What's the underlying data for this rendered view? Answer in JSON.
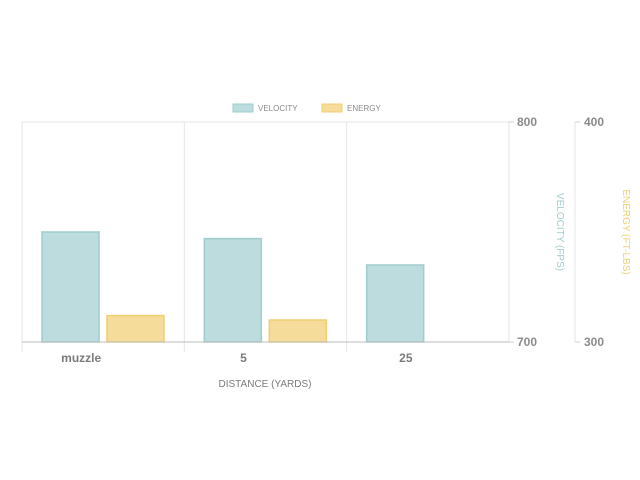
{
  "chart_data": {
    "type": "bar",
    "categories": [
      "muzzle",
      "5",
      "25"
    ],
    "series": [
      {
        "name": "VELOCITY",
        "values": [
          750,
          747,
          735
        ],
        "axis": "left",
        "color": "#bcdcdd",
        "stroke": "#9fcccf"
      },
      {
        "name": "ENERGY",
        "values": [
          312,
          310,
          null
        ],
        "axis": "right",
        "color": "#f5dc9a",
        "stroke": "#f0cf72"
      }
    ],
    "xlabel": "DISTANCE (YARDS)",
    "y1label": "VELOCITY (FPS)",
    "y2label": "ENERGY (FT-LBS)",
    "y1lim": [
      700,
      800
    ],
    "y2lim": [
      300,
      400
    ],
    "y1ticks": [
      "800",
      "700"
    ],
    "y2ticks": [
      "400",
      "300"
    ],
    "y1label_color": "#9fcccf",
    "y2label_color": "#f0cf72",
    "grid": true,
    "legend": "top-center"
  }
}
